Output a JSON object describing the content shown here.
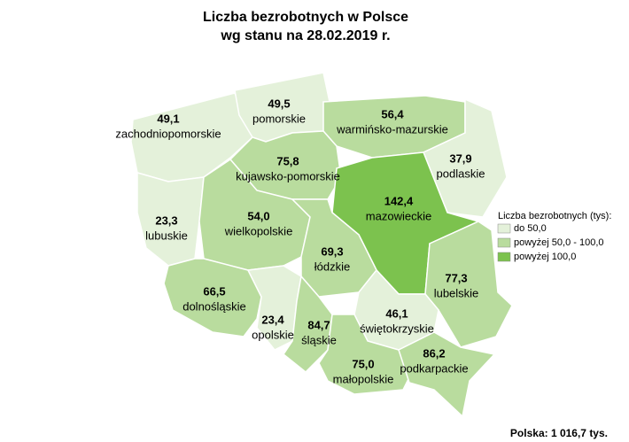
{
  "title": [
    "Liczba bezrobotnych w Polsce",
    "wg stanu na 28.02.2019 r."
  ],
  "regions": [
    {
      "name": "zachodniopomorskie",
      "value": "49,1",
      "color": "#e4f1da"
    },
    {
      "name": "pomorskie",
      "value": "49,5",
      "color": "#e4f1da"
    },
    {
      "name": "warmińsko-mazurskie",
      "value": "56,4",
      "color": "#b9dc9e"
    },
    {
      "name": "podlaskie",
      "value": "37,9",
      "color": "#e4f1da"
    },
    {
      "name": "kujawsko-pomorskie",
      "value": "75,8",
      "color": "#b9dc9e"
    },
    {
      "name": "mazowieckie",
      "value": "142,4",
      "color": "#7cc24e"
    },
    {
      "name": "lubuskie",
      "value": "23,3",
      "color": "#e4f1da"
    },
    {
      "name": "wielkopolskie",
      "value": "54,0",
      "color": "#b9dc9e"
    },
    {
      "name": "łódzkie",
      "value": "69,3",
      "color": "#b9dc9e"
    },
    {
      "name": "lubelskie",
      "value": "77,3",
      "color": "#b9dc9e"
    },
    {
      "name": "dolnośląskie",
      "value": "66,5",
      "color": "#b9dc9e"
    },
    {
      "name": "opolskie",
      "value": "23,4",
      "color": "#e4f1da"
    },
    {
      "name": "śląskie",
      "value": "84,7",
      "color": "#b9dc9e"
    },
    {
      "name": "świętokrzyskie",
      "value": "46,1",
      "color": "#e4f1da"
    },
    {
      "name": "małopolskie",
      "value": "75,0",
      "color": "#b9dc9e"
    },
    {
      "name": "podkarpackie",
      "value": "86,2",
      "color": "#b9dc9e"
    }
  ],
  "legend": {
    "title": "Liczba bezrobotnych (tys):",
    "items": [
      {
        "label": "do 50,0",
        "color": "#e4f1da"
      },
      {
        "label": "powyżej 50,0 - 100,0",
        "color": "#b9dc9e"
      },
      {
        "label": "powyżej 100,0",
        "color": "#7cc24e"
      }
    ]
  },
  "total": "Polska: 1 016,7 tys."
}
